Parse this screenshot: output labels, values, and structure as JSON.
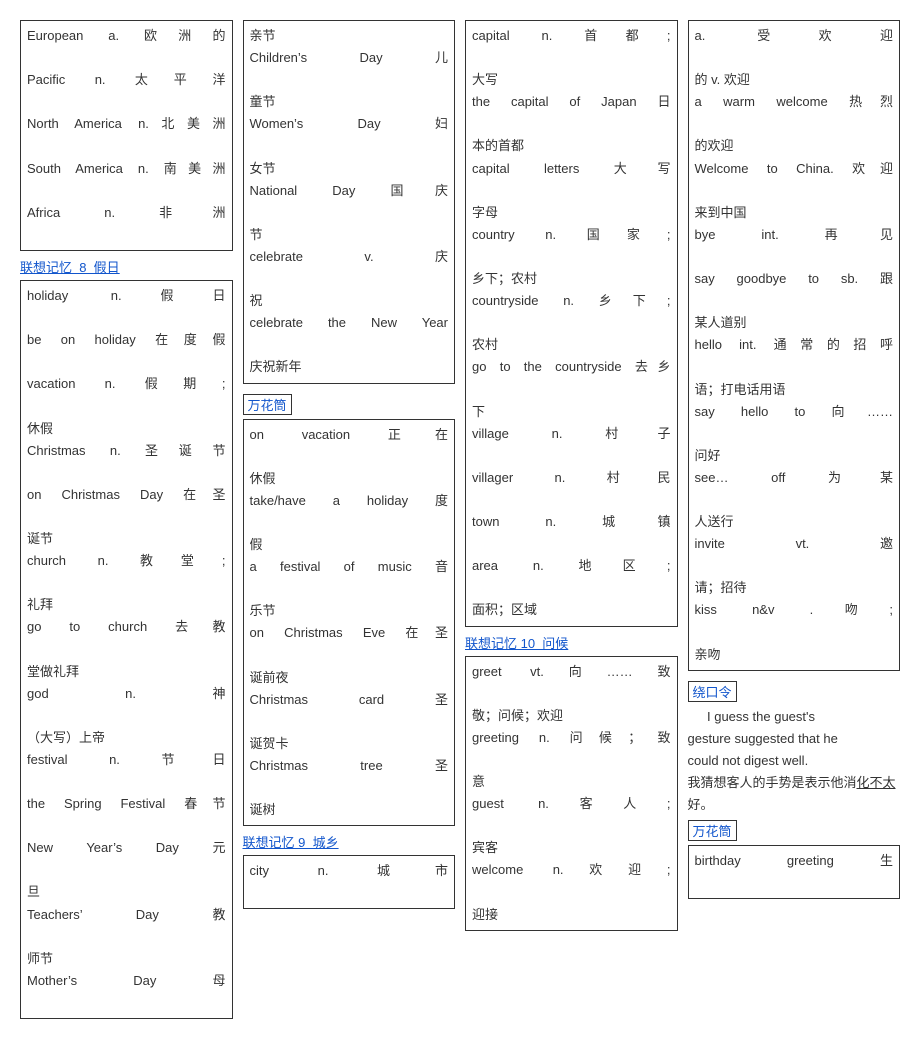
{
  "col1": {
    "box1": [
      {
        "l": "European",
        "r": "a. 欧洲的"
      },
      {
        "l": "Pacific",
        "r": "n. 太平洋"
      },
      {
        "l": "North America",
        "r": "n.北美洲"
      },
      {
        "l": "South America",
        "r": "n. 南美洲"
      },
      {
        "l": "Africa",
        "r": "n. 非洲"
      }
    ],
    "heading1": "联想记忆  8  假日",
    "box2": [
      {
        "l": "holiday",
        "r": "n.假日"
      },
      {
        "l": "be on holiday",
        "r": "在度假"
      },
      {
        "l": "vacation",
        "r": "n. 假期;"
      },
      {
        "line": "休假"
      },
      {
        "l": "Christmas",
        "r": "n. 圣诞节"
      },
      {
        "l": "on Christmas Day",
        "r": "在圣"
      },
      {
        "line": "诞节"
      },
      {
        "l": "church",
        "r": "n. 教堂;"
      },
      {
        "line": "礼拜"
      },
      {
        "l": "go to church",
        "r": "去教"
      },
      {
        "line": "堂做礼拜"
      },
      {
        "l": "god",
        "r": "n. 神"
      },
      {
        "line": "（大写）上帝"
      },
      {
        "l": "festival",
        "r": "n. 节日"
      },
      {
        "l": "the Spring Festival",
        "r": "春节"
      },
      {
        "l": "New Year’s Day",
        "r": "元"
      },
      {
        "line": "旦"
      },
      {
        "l": "Teachers’ Day",
        "r": "教"
      },
      {
        "line": "师节"
      },
      {
        "l": "Mother’s Day",
        "r": "母"
      }
    ]
  },
  "col2": {
    "box1": [
      {
        "line": "亲节"
      },
      {
        "l": "Children’s Day",
        "r": "儿"
      },
      {
        "line": "童节"
      },
      {
        "l": "Women’s Day",
        "r": "妇"
      },
      {
        "line": "女节"
      },
      {
        "l": "National Day",
        "r": "国庆"
      },
      {
        "line": "节"
      },
      {
        "l": "celebrate",
        "r": "v. 庆"
      },
      {
        "line": "祝"
      },
      {
        "l": "celebrate the New Year",
        "r": ""
      },
      {
        "line": "庆祝新年"
      }
    ],
    "heading1": "万花筒",
    "box2": [
      {
        "l": "on vacation",
        "r": "正在"
      },
      {
        "line": "休假"
      },
      {
        "l": "take/have a holiday",
        "r": "度"
      },
      {
        "line": "假"
      },
      {
        "l": "a festival of music",
        "r": "音"
      },
      {
        "line": "乐节"
      },
      {
        "l": "on Christmas Eve",
        "r": "在圣"
      },
      {
        "line": "诞前夜"
      },
      {
        "l": "Christmas card",
        "r": "圣"
      },
      {
        "line": "诞贺卡"
      },
      {
        "l": "Christmas tree",
        "r": "圣"
      },
      {
        "line": "诞树"
      }
    ],
    "heading2": "联想记忆 9  城乡",
    "box3": [
      {
        "l": "city",
        "r": "n. 城市"
      }
    ]
  },
  "col3": {
    "box1": [
      {
        "l": "capital",
        "r": "n. 首都;"
      },
      {
        "line": "大写"
      },
      {
        "l": "the capital of Japan",
        "r": "日"
      },
      {
        "line": "本的首都"
      },
      {
        "l": "capital letters",
        "r": "大写"
      },
      {
        "line": "字母"
      },
      {
        "l": "country",
        "r": "n. 国家;"
      },
      {
        "line": "乡下；农村"
      },
      {
        "l": "countryside",
        "r": "n. 乡下;"
      },
      {
        "line": "农村"
      },
      {
        "l": "go to the countryside",
        "r": "去乡"
      },
      {
        "line": "下"
      },
      {
        "l": "village",
        "r": "n. 村子"
      },
      {
        "l": "villager",
        "r": "n. 村民"
      },
      {
        "l": "town",
        "r": "n. 城镇"
      },
      {
        "l": "area",
        "r": "n. 地区;"
      },
      {
        "line": "面积；区域"
      }
    ],
    "heading1": "联想记忆 10  问候",
    "box2": [
      {
        "l": "greet",
        "r": "vt.向……致"
      },
      {
        "line": "敬；问候；欢迎"
      },
      {
        "l": "greeting",
        "r": "n. 问候；致"
      },
      {
        "line": "意"
      },
      {
        "l": "guest",
        "r": "n.客人;"
      },
      {
        "line": "宾客"
      },
      {
        "l": "welcome",
        "r": "n.欢迎;"
      },
      {
        "line": "迎接"
      }
    ]
  },
  "col4": {
    "box1": [
      {
        "l": "",
        "r": "a. 受欢迎"
      },
      {
        "line": "的 v. 欢迎"
      },
      {
        "l": "a warm welcome",
        "r": "热烈"
      },
      {
        "line": "的欢迎"
      },
      {
        "l": "Welcome to China.",
        "r": "欢迎"
      },
      {
        "line": "来到中国"
      },
      {
        "l": "bye",
        "r": "int. 再见"
      },
      {
        "l": "say goodbye to sb.",
        "r": "跟"
      },
      {
        "line": "某人道别"
      },
      {
        "l": "hello",
        "r": "int. 通常的招呼"
      },
      {
        "line": "语；打电话用语"
      },
      {
        "l": "say hello to",
        "r": "向……"
      },
      {
        "line": "问好"
      },
      {
        "l": "see… off",
        "r": "为某"
      },
      {
        "line": "人送行"
      },
      {
        "l": "invite",
        "r": "vt. 邀"
      },
      {
        "line": "请；招待"
      },
      {
        "l": "kiss",
        "r": "n&v .吻;"
      },
      {
        "line": "亲吻"
      }
    ],
    "heading1": "绕口令",
    "tongue_lines": [
      "I guess the guest's",
      "gesture suggested that he",
      "could not digest well."
    ],
    "tongue_cn_pre": "我猜想客人的手势是表示他消",
    "tongue_cn_ul": "化不太",
    "tongue_cn_post": "好。",
    "heading2": "万花筒",
    "box2": [
      {
        "l": "birthday greeting",
        "r": "生"
      }
    ]
  }
}
